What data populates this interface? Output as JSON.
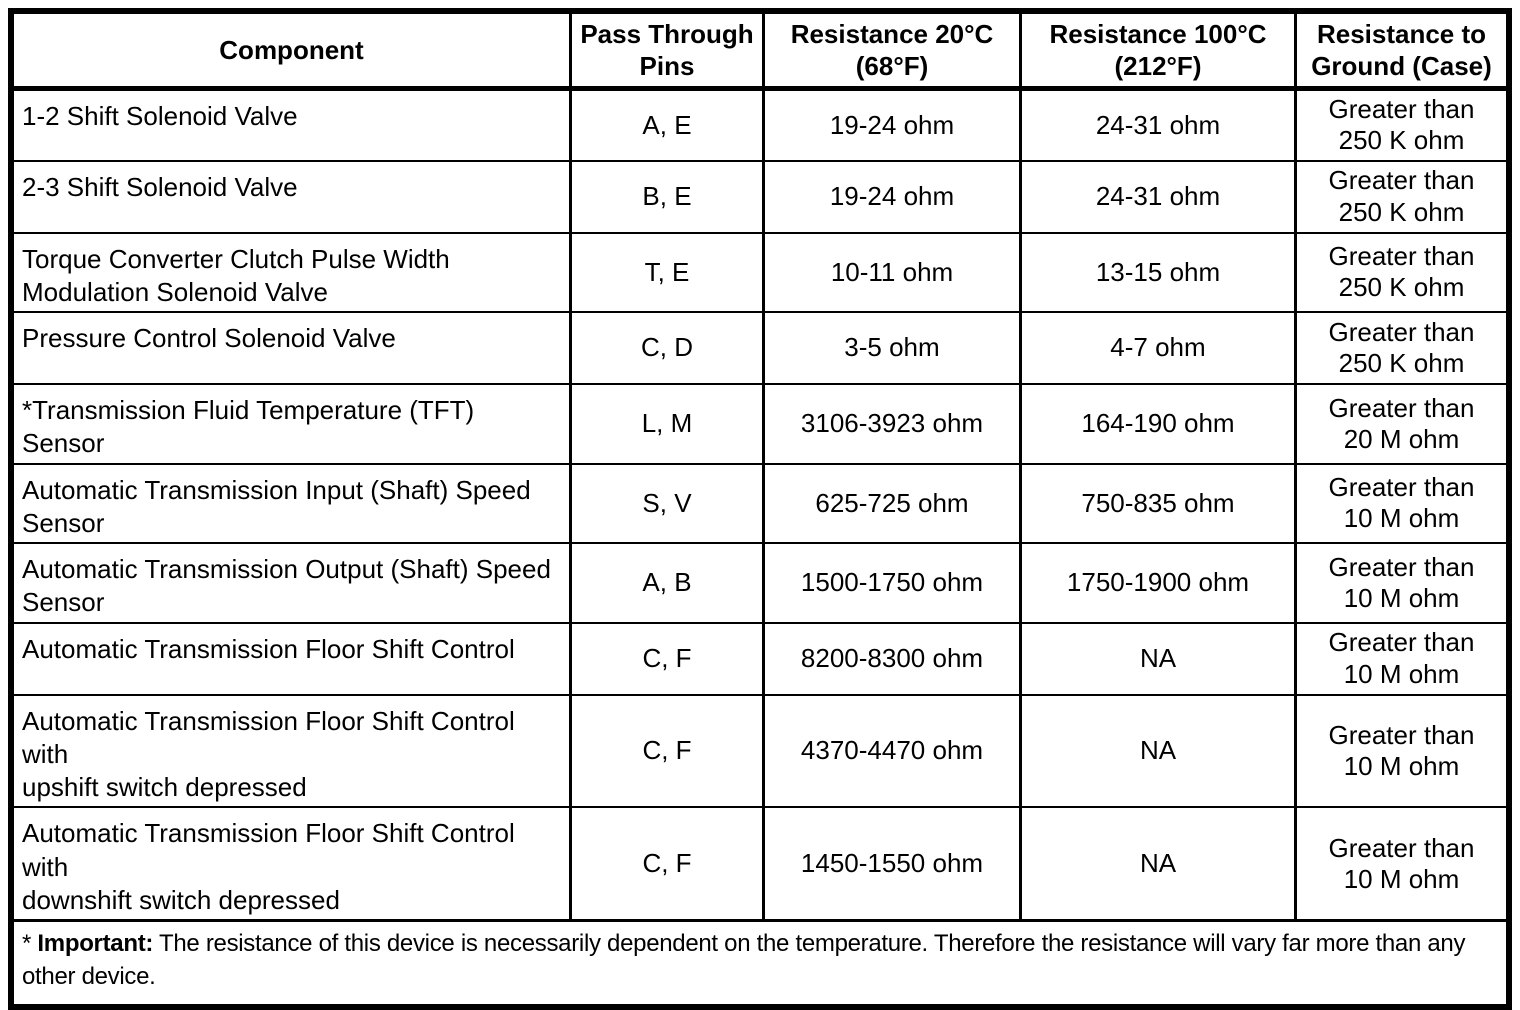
{
  "table": {
    "columns": [
      {
        "key": "component",
        "label": "Component"
      },
      {
        "key": "pins",
        "label": "Pass Through\nPins"
      },
      {
        "key": "r20",
        "label": "Resistance 20°C\n(68°F)"
      },
      {
        "key": "r100",
        "label": "Resistance 100°C\n(212°F)"
      },
      {
        "key": "ground",
        "label": "Resistance to\nGround (Case)"
      }
    ],
    "rows": [
      {
        "component": "1-2 Shift Solenoid Valve",
        "pins": "A, E",
        "r20": "19-24 ohm",
        "r100": "24-31 ohm",
        "ground": "Greater than\n250 K ohm"
      },
      {
        "component": "2-3 Shift Solenoid Valve",
        "pins": "B, E",
        "r20": "19-24 ohm",
        "r100": "24-31 ohm",
        "ground": "Greater than\n250 K ohm"
      },
      {
        "component": "Torque Converter Clutch Pulse Width\nModulation Solenoid Valve",
        "pins": "T, E",
        "r20": "10-11 ohm",
        "r100": "13-15 ohm",
        "ground": "Greater than\n250 K ohm"
      },
      {
        "component": "Pressure Control Solenoid Valve",
        "pins": "C, D",
        "r20": "3-5 ohm",
        "r100": "4-7 ohm",
        "ground": "Greater than\n250 K ohm"
      },
      {
        "component": "*Transmission Fluid Temperature (TFT) Sensor",
        "pins": "L, M",
        "r20": "3106-3923 ohm",
        "r100": "164-190 ohm",
        "ground": "Greater than\n20 M ohm"
      },
      {
        "component": "Automatic Transmission Input (Shaft) Speed\nSensor",
        "pins": "S, V",
        "r20": "625-725 ohm",
        "r100": "750-835 ohm",
        "ground": "Greater than\n10 M ohm"
      },
      {
        "component": "Automatic Transmission Output (Shaft) Speed\nSensor",
        "pins": "A, B",
        "r20": "1500-1750 ohm",
        "r100": "1750-1900 ohm",
        "ground": "Greater than\n10 M ohm"
      },
      {
        "component": "Automatic Transmission Floor Shift Control",
        "pins": "C, F",
        "r20": "8200-8300 ohm",
        "r100": "NA",
        "ground": "Greater than\n10 M ohm"
      },
      {
        "component": "Automatic Transmission Floor Shift Control with\nupshift switch depressed",
        "pins": "C, F",
        "r20": "4370-4470 ohm",
        "r100": "NA",
        "ground": "Greater than\n10 M ohm"
      },
      {
        "component": "Automatic Transmission Floor Shift Control with\ndownshift switch depressed",
        "pins": "C, F",
        "r20": "1450-1550 ohm",
        "r100": "NA",
        "ground": "Greater than\n10 M ohm"
      }
    ],
    "footnote": {
      "marker": "*",
      "label": "Important:",
      "text": "The resistance of this device is necessarily dependent on the temperature. Therefore the resistance will vary far more than any other device."
    }
  }
}
